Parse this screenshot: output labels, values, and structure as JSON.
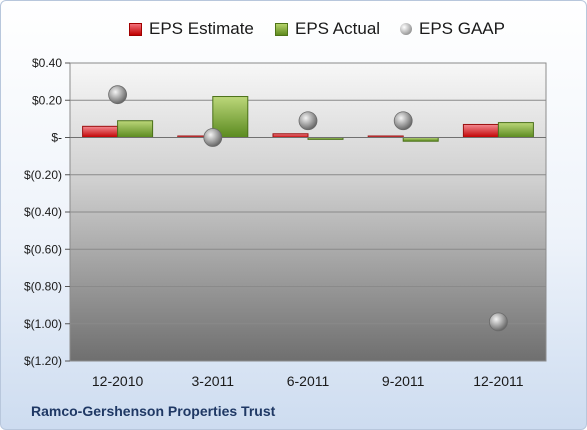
{
  "legend": {
    "estimate": "EPS Estimate",
    "actual": "EPS Actual",
    "gaap": "EPS GAAP"
  },
  "company": "Ramco-Gershenson Properties Trust",
  "colors": {
    "estimate": "#c00000",
    "actual": "#70a030",
    "gaap": "#9a9a9a"
  },
  "chart_data": {
    "type": "bar",
    "categories": [
      "12-2010",
      "3-2011",
      "6-2011",
      "9-2011",
      "12-2011"
    ],
    "series": [
      {
        "name": "EPS Estimate",
        "values": [
          0.06,
          0.0,
          0.02,
          0.0,
          0.07
        ]
      },
      {
        "name": "EPS Actual",
        "values": [
          0.09,
          0.22,
          -0.01,
          -0.02,
          0.08
        ]
      },
      {
        "name": "EPS GAAP",
        "type": "scatter",
        "values": [
          0.23,
          0.0,
          0.09,
          0.09,
          -0.99
        ]
      }
    ],
    "ylim": [
      -1.2,
      0.4
    ],
    "yticks": [
      {
        "value": 0.4,
        "label": "$0.40"
      },
      {
        "value": 0.2,
        "label": "$0.20"
      },
      {
        "value": 0.0,
        "label": "$-"
      },
      {
        "value": -0.2,
        "label": "$(0.20)"
      },
      {
        "value": -0.4,
        "label": "$(0.40)"
      },
      {
        "value": -0.6,
        "label": "$(0.60)"
      },
      {
        "value": -0.8,
        "label": "$(0.80)"
      },
      {
        "value": -1.0,
        "label": "$(1.00)"
      },
      {
        "value": -1.2,
        "label": "$(1.20)"
      }
    ],
    "grid": true,
    "legend_position": "top"
  }
}
